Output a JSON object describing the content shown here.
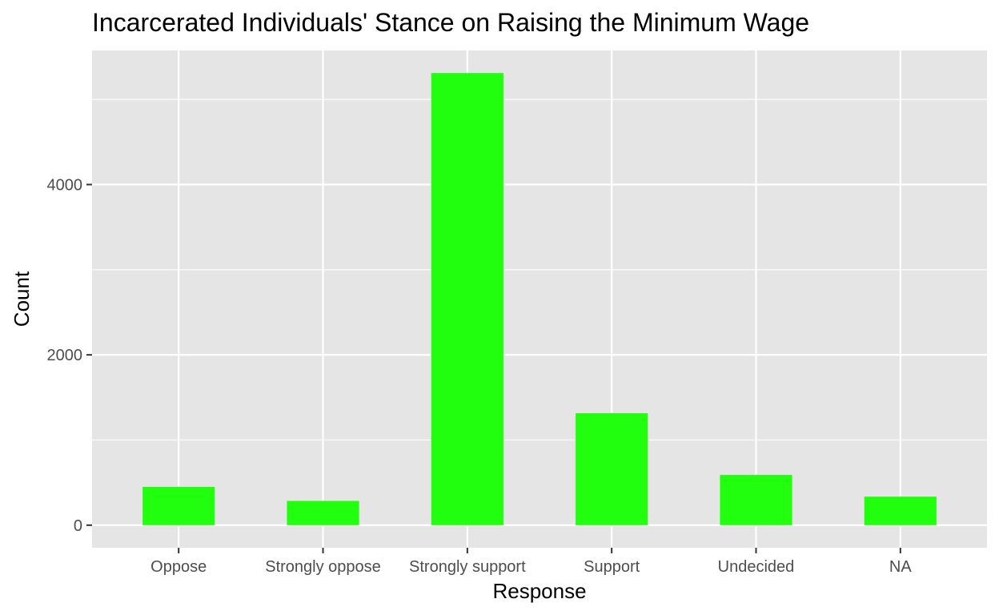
{
  "chart_data": {
    "type": "bar",
    "title": "Incarcerated Individuals' Stance on Raising the Minimum Wage",
    "xlabel": "Response",
    "ylabel": "Count",
    "categories": [
      "Oppose",
      "Strongly oppose",
      "Strongly support",
      "Support",
      "Undecided",
      "NA"
    ],
    "values": [
      450,
      285,
      5310,
      1315,
      590,
      335
    ],
    "ylim": [
      -265,
      5575
    ],
    "yticks": [
      0,
      2000,
      4000
    ],
    "ytick_labels": [
      "0",
      "2000",
      "4000"
    ],
    "grid": true,
    "legend": "none",
    "colors": {
      "bar": "#22ff0e",
      "panel_background": "#e5e5e5",
      "grid": "#ffffff"
    }
  }
}
